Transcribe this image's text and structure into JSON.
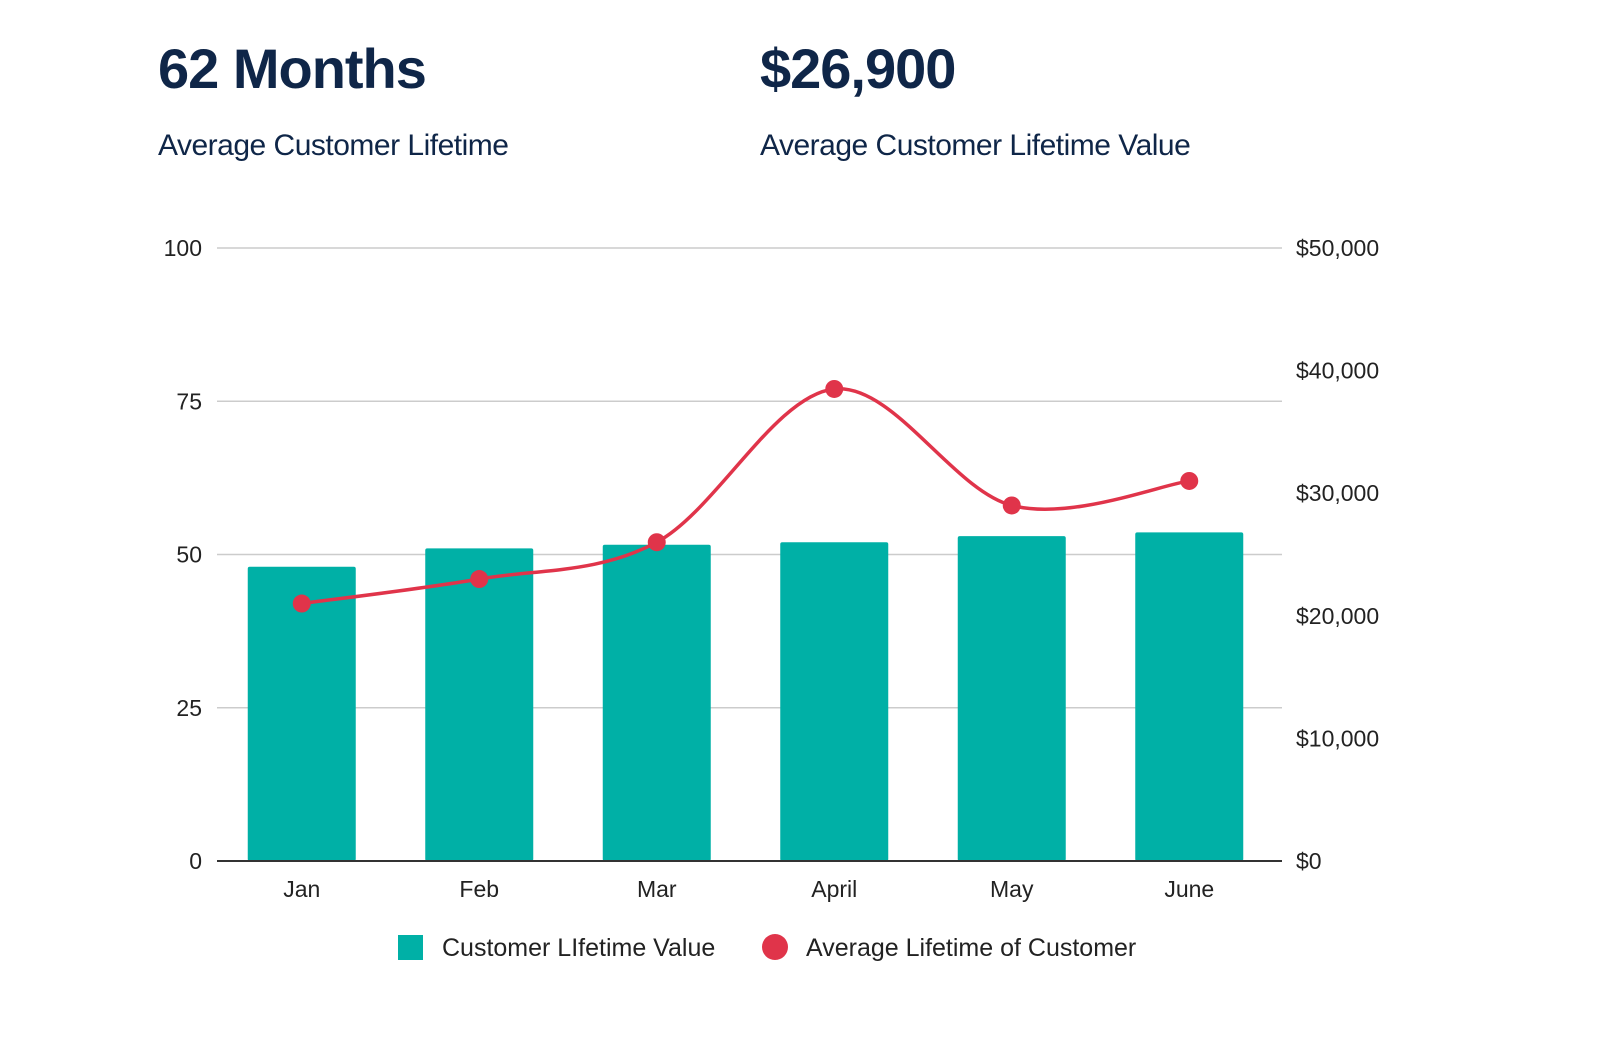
{
  "kpis": [
    {
      "value": "62 Months",
      "label": "Average Customer Lifetime"
    },
    {
      "value": "$26,900",
      "label": "Average Customer Lifetime Value"
    }
  ],
  "chart_data": {
    "type": "bar+line",
    "categories": [
      "Jan",
      "Feb",
      "Mar",
      "April",
      "May",
      "June"
    ],
    "series": [
      {
        "name": "Customer LIfetime Value",
        "type": "bar",
        "axis": "right",
        "color": "#00b0a6",
        "values": [
          24000,
          25500,
          25800,
          26000,
          26500,
          26800
        ]
      },
      {
        "name": "Average Lifetime of Customer",
        "type": "line",
        "axis": "left",
        "color": "#e0344a",
        "values": [
          42,
          46,
          52,
          77,
          58,
          62
        ]
      }
    ],
    "left_axis": {
      "range": [
        0,
        100
      ],
      "ticks": [
        "0",
        "25",
        "50",
        "75",
        "100"
      ]
    },
    "right_axis": {
      "range": [
        0,
        50000
      ],
      "ticks": [
        "$0",
        "$10,000",
        "$20,000",
        "$30,000",
        "$40,000",
        "$50,000"
      ]
    },
    "grid": true,
    "legend": "bottom"
  }
}
